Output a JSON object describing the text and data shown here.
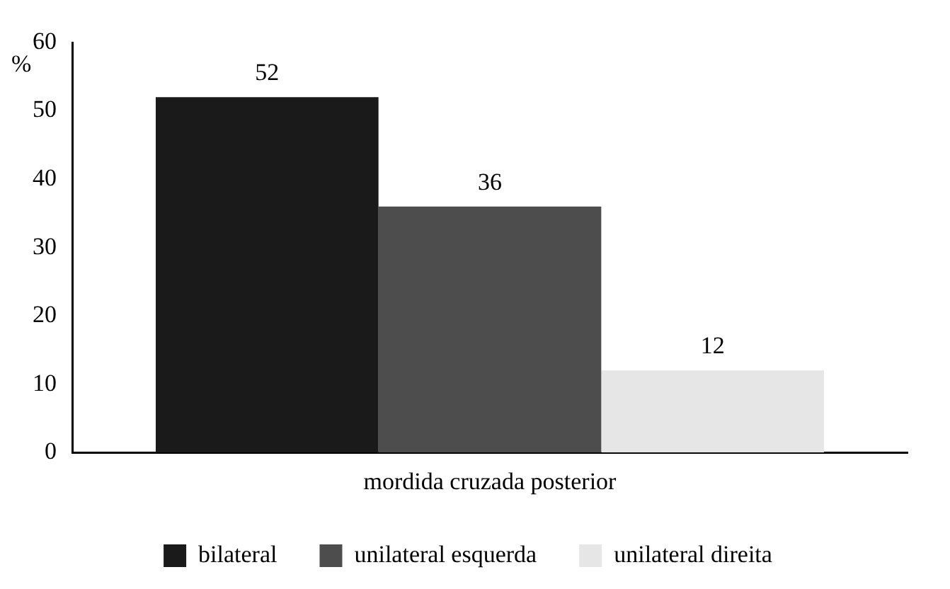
{
  "chart_data": {
    "type": "bar",
    "ylabel": "%",
    "categories": [
      "mordida cruzada posterior"
    ],
    "series": [
      {
        "name": "bilateral",
        "color": "#1a1a1a",
        "values": [
          52
        ]
      },
      {
        "name": "unilateral esquerda",
        "color": "#4d4d4d",
        "values": [
          36
        ]
      },
      {
        "name": "unilateral direita",
        "color": "#e6e6e6",
        "values": [
          12
        ]
      }
    ],
    "ylim": [
      0,
      60
    ],
    "yticks": [
      0,
      10,
      20,
      30,
      40,
      50,
      60
    ],
    "data_labels": true,
    "legend": "bottom",
    "grid": false
  }
}
